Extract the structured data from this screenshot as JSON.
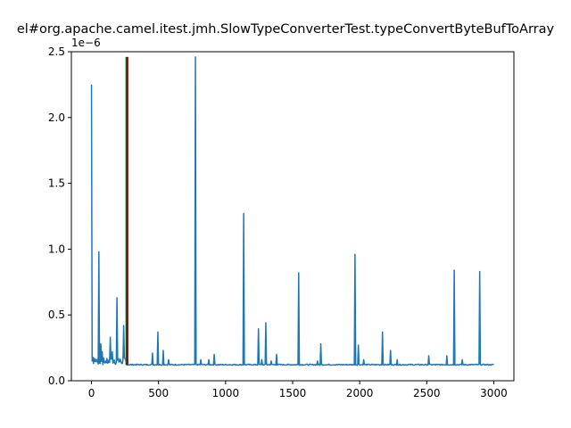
{
  "chart_data": {
    "type": "line",
    "title": "el#org.apache.camel.itest.jmh.SlowTypeConverterTest.typeConvertByteBufToArray",
    "xlabel": "",
    "ylabel": "",
    "y_offset_label": "1e−6",
    "xlim": [
      -150,
      3150
    ],
    "ylim": [
      0,
      2.5e-06
    ],
    "x_ticks": [
      0,
      500,
      1000,
      1500,
      2000,
      2500,
      3000
    ],
    "x_tick_labels": [
      "0",
      "500",
      "1000",
      "1500",
      "2000",
      "2500",
      "3000"
    ],
    "y_ticks": [
      0,
      5e-07,
      1e-06,
      1.5e-06,
      2e-06,
      2.5e-06
    ],
    "y_tick_labels": [
      "0.0",
      "0.5",
      "1.0",
      "1.5",
      "2.0",
      "2.5"
    ],
    "grid": false,
    "series_color": "#1f77b4",
    "baseline": 1.22e-07,
    "x_range": [
      0,
      3000
    ],
    "spikes": [
      {
        "x": 0,
        "y": 2.25e-06
      },
      {
        "x": 10,
        "y": 1.8e-07
      },
      {
        "x": 20,
        "y": 1.7e-07
      },
      {
        "x": 45,
        "y": 1.6e-07
      },
      {
        "x": 55,
        "y": 9.8e-07
      },
      {
        "x": 70,
        "y": 2.8e-07
      },
      {
        "x": 80,
        "y": 2.2e-07
      },
      {
        "x": 140,
        "y": 3.3e-07
      },
      {
        "x": 155,
        "y": 2.2e-07
      },
      {
        "x": 190,
        "y": 6.3e-07
      },
      {
        "x": 200,
        "y": 1.7e-07
      },
      {
        "x": 240,
        "y": 4.2e-07
      },
      {
        "x": 455,
        "y": 2.1e-07
      },
      {
        "x": 495,
        "y": 3.7e-07
      },
      {
        "x": 535,
        "y": 2.3e-07
      },
      {
        "x": 575,
        "y": 1.6e-07
      },
      {
        "x": 775,
        "y": 2.46e-06
      },
      {
        "x": 815,
        "y": 1.6e-07
      },
      {
        "x": 875,
        "y": 1.6e-07
      },
      {
        "x": 915,
        "y": 2e-07
      },
      {
        "x": 1135,
        "y": 1.27e-06
      },
      {
        "x": 1245,
        "y": 3.95e-07
      },
      {
        "x": 1270,
        "y": 1.6e-07
      },
      {
        "x": 1300,
        "y": 4.4e-07
      },
      {
        "x": 1340,
        "y": 1.5e-07
      },
      {
        "x": 1380,
        "y": 2e-07
      },
      {
        "x": 1545,
        "y": 8.2e-07
      },
      {
        "x": 1685,
        "y": 1.5e-07
      },
      {
        "x": 1710,
        "y": 2.8e-07
      },
      {
        "x": 1965,
        "y": 9.6e-07
      },
      {
        "x": 1990,
        "y": 2.7e-07
      },
      {
        "x": 2030,
        "y": 1.6e-07
      },
      {
        "x": 2170,
        "y": 3.7e-07
      },
      {
        "x": 2230,
        "y": 2.3e-07
      },
      {
        "x": 2280,
        "y": 1.6e-07
      },
      {
        "x": 2515,
        "y": 1.9e-07
      },
      {
        "x": 2650,
        "y": 1.9e-07
      },
      {
        "x": 2705,
        "y": 8.4e-07
      },
      {
        "x": 2765,
        "y": 1.6e-07
      },
      {
        "x": 2895,
        "y": 8.3e-07
      }
    ],
    "vertical_lines": [
      {
        "x": 258,
        "color": "#2ca02c"
      },
      {
        "x": 265,
        "color": "#000000"
      },
      {
        "x": 272,
        "color": "#d62728"
      }
    ],
    "vertical_lines_ymax": 2.46e-06
  }
}
